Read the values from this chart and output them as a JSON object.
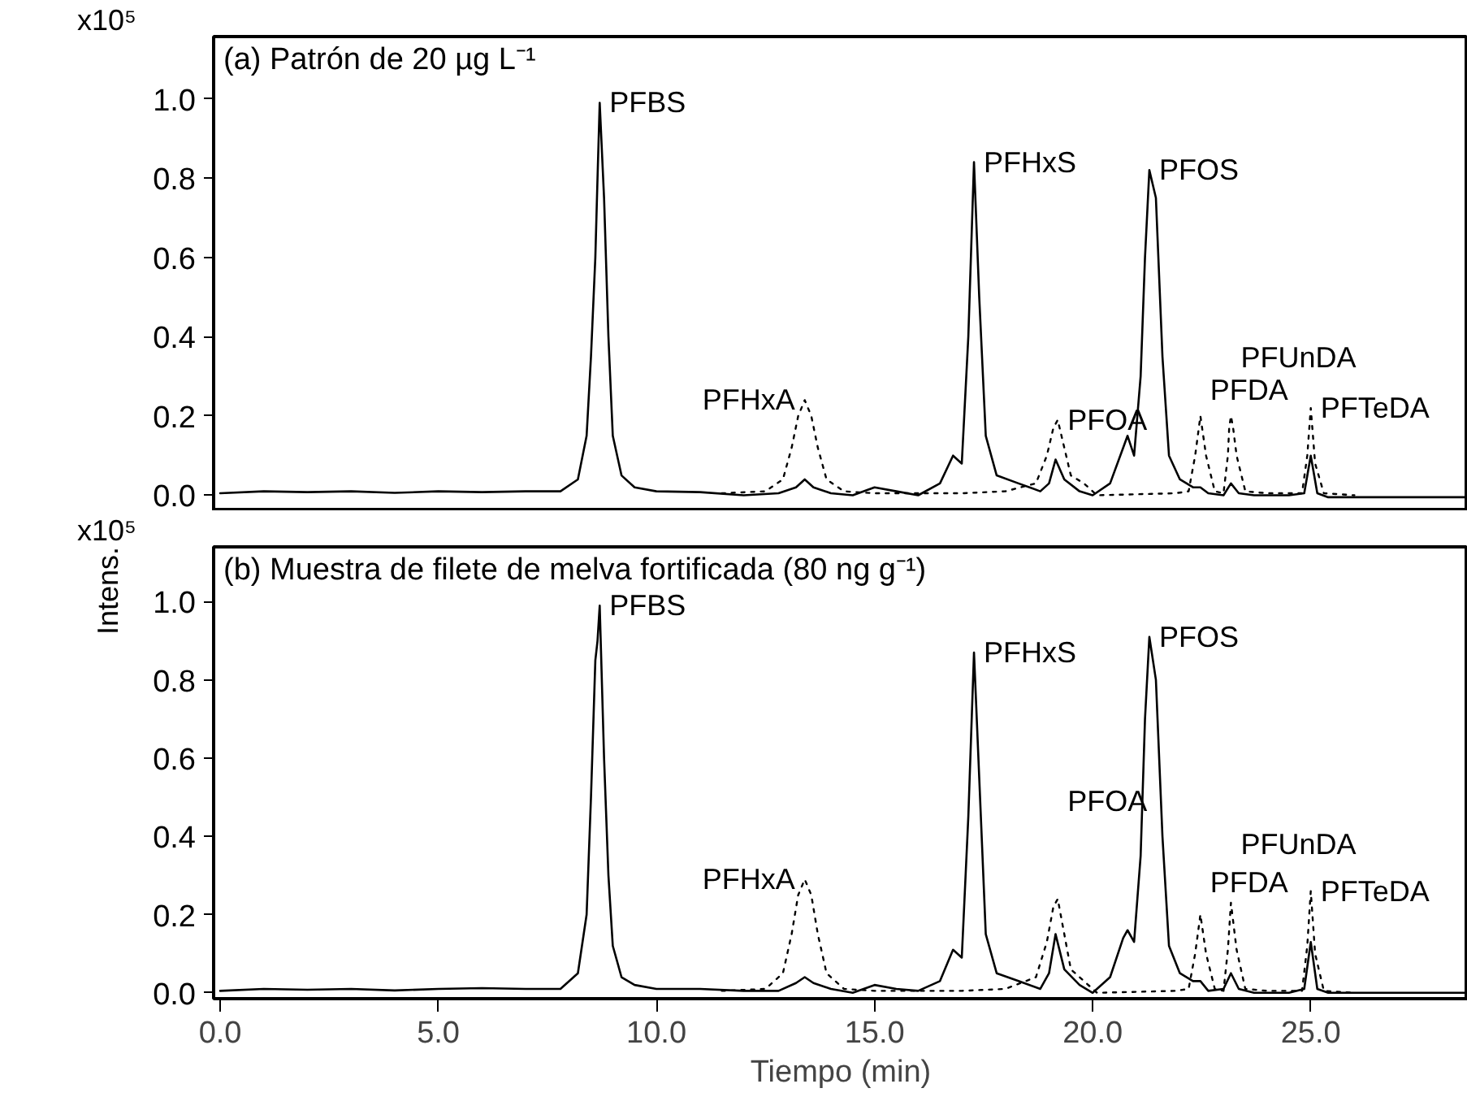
{
  "chart_data": [
    {
      "type": "line",
      "title": "(a) Patrón de 20 µg L⁻¹",
      "tick_labels": "y",
      "grid": false,
      "xlim": [
        -0.15,
        28.6
      ],
      "ylim": [
        -0.04,
        1.157
      ],
      "yticks": [
        {
          "value": 0,
          "label": "0.0"
        },
        {
          "value": 0.2,
          "label": "0.2"
        },
        {
          "value": 0.4,
          "label": "0.4"
        },
        {
          "value": 0.6,
          "label": "0.6"
        },
        {
          "value": 0.8,
          "label": "0.8"
        },
        {
          "value": 1,
          "label": "1.0"
        }
      ],
      "x": [
        0,
        1,
        2,
        3,
        4,
        5,
        6,
        7,
        7.8,
        8.2,
        8.4,
        8.5,
        8.6,
        8.65,
        8.7,
        8.8,
        8.9,
        9.0,
        9.2,
        9.5,
        10,
        11,
        12,
        12.8,
        13.2,
        13.4,
        13.6,
        14,
        14.5,
        15,
        15.5,
        16,
        16.5,
        16.8,
        17.0,
        17.15,
        17.28,
        17.4,
        17.55,
        17.8,
        18.3,
        18.8,
        19.0,
        19.15,
        19.35,
        19.7,
        20.0,
        20.4,
        20.7,
        20.8,
        20.95,
        21.1,
        21.2,
        21.3,
        21.45,
        21.6,
        21.75,
        22.0,
        22.3,
        22.47,
        22.65,
        23.0,
        23.17,
        23.35,
        23.7,
        24.5,
        24.85,
        25.0,
        25.15,
        25.4,
        26,
        27,
        28.6
      ],
      "series": [
        {
          "color": "#000000",
          "line_style": "solid",
          "values": [
            0.005,
            0.01,
            0.008,
            0.01,
            0.006,
            0.01,
            0.008,
            0.01,
            0.01,
            0.04,
            0.15,
            0.35,
            0.6,
            0.8,
            0.99,
            0.75,
            0.4,
            0.15,
            0.05,
            0.02,
            0.01,
            0.008,
            0.0,
            0.005,
            0.02,
            0.04,
            0.02,
            0.005,
            0.0,
            0.02,
            0.01,
            0.0,
            0.03,
            0.1,
            0.08,
            0.4,
            0.84,
            0.5,
            0.15,
            0.05,
            0.03,
            0.01,
            0.03,
            0.09,
            0.04,
            0.01,
            0.0,
            0.03,
            0.12,
            0.15,
            0.1,
            0.3,
            0.6,
            0.82,
            0.75,
            0.35,
            0.1,
            0.04,
            0.02,
            0.02,
            0.005,
            0.0,
            0.03,
            0.005,
            0.0,
            0.0,
            0.005,
            0.1,
            0.005,
            -0.005,
            -0.005,
            -0.005,
            -0.005
          ]
        },
        {
          "color": "#000000",
          "line_style": "dotted",
          "x": [
            11.5,
            12.5,
            12.9,
            13.1,
            13.25,
            13.4,
            13.55,
            13.7,
            13.9,
            14.3,
            15,
            16,
            17,
            18,
            18.7,
            18.95,
            19.1,
            19.2,
            19.35,
            19.5,
            19.8,
            20.1,
            21.9,
            22.2,
            22.35,
            22.47,
            22.6,
            22.8,
            23.0,
            23.1,
            23.13,
            23.17,
            23.22,
            23.3,
            23.5,
            24.0,
            24.8,
            24.92,
            25.0,
            25.1,
            25.3,
            26
          ],
          "values": [
            0.005,
            0.01,
            0.04,
            0.12,
            0.2,
            0.24,
            0.2,
            0.12,
            0.04,
            0.01,
            0.005,
            0.005,
            0.005,
            0.01,
            0.03,
            0.1,
            0.17,
            0.19,
            0.12,
            0.05,
            0.03,
            0.0,
            0.005,
            0.01,
            0.1,
            0.2,
            0.1,
            0.01,
            0.005,
            0.1,
            0.17,
            0.2,
            0.17,
            0.1,
            0.01,
            0.005,
            0.005,
            0.1,
            0.22,
            0.08,
            0.005,
            0.0
          ]
        }
      ],
      "annotations": [
        "x10⁵",
        {
          "text": "PFBS",
          "x": 8.7,
          "y": 0.99
        },
        {
          "text": "PFHxS",
          "x": 17.28,
          "y": 0.84
        },
        {
          "text": "PFOS",
          "x": 21.3,
          "y": 0.82
        },
        {
          "text": "PFHxA",
          "x": 13.4,
          "y": 0.24
        },
        {
          "text": "PFOA",
          "x": 19.2,
          "y": 0.19
        },
        {
          "text": "PFDA",
          "x": 22.47,
          "y": 0.2
        },
        {
          "text": "PFUnDA",
          "x": 23.17,
          "y": 0.2
        },
        {
          "text": "PFTeDA",
          "x": 25.0,
          "y": 0.22
        }
      ]
    },
    {
      "type": "line",
      "title": "(b) Muestra de filete de melva fortificada (80 ng g⁻¹)",
      "xlabel": "Tiempo (min)",
      "ylabel": "Intens.",
      "grid": false,
      "xlim": [
        -0.15,
        28.6
      ],
      "ylim": [
        -0.015,
        1.14
      ],
      "xticks": [
        {
          "value": 0,
          "label": "0.0"
        },
        {
          "value": 5,
          "label": "5.0"
        },
        {
          "value": 10,
          "label": "10.0"
        },
        {
          "value": 15,
          "label": "15.0"
        },
        {
          "value": 20,
          "label": "20.0"
        },
        {
          "value": 25,
          "label": "25.0"
        }
      ],
      "yticks": [
        {
          "value": 0,
          "label": "0.0"
        },
        {
          "value": 0.2,
          "label": "0.2"
        },
        {
          "value": 0.4,
          "label": "0.4"
        },
        {
          "value": 0.6,
          "label": "0.6"
        },
        {
          "value": 0.8,
          "label": "0.8"
        },
        {
          "value": 1,
          "label": "1.0"
        }
      ],
      "x": [
        0,
        1,
        2,
        3,
        4,
        5,
        6,
        7,
        7.8,
        8.2,
        8.4,
        8.5,
        8.6,
        8.65,
        8.7,
        8.8,
        8.9,
        9.0,
        9.2,
        9.5,
        10,
        11,
        12,
        12.8,
        13.2,
        13.4,
        13.6,
        14,
        14.5,
        15,
        15.5,
        16,
        16.5,
        16.8,
        17.0,
        17.15,
        17.28,
        17.4,
        17.55,
        17.8,
        18.3,
        18.8,
        19.0,
        19.15,
        19.35,
        19.7,
        20.0,
        20.4,
        20.7,
        20.8,
        20.95,
        21.1,
        21.2,
        21.3,
        21.45,
        21.6,
        21.75,
        22.0,
        22.3,
        22.47,
        22.65,
        23.0,
        23.17,
        23.35,
        23.7,
        24.5,
        24.85,
        25.0,
        25.15,
        25.4,
        26,
        27,
        28.6
      ],
      "series": [
        {
          "color": "#000000",
          "line_style": "solid",
          "values": [
            0.005,
            0.01,
            0.008,
            0.01,
            0.006,
            0.01,
            0.012,
            0.01,
            0.01,
            0.05,
            0.2,
            0.5,
            0.85,
            0.9,
            0.99,
            0.6,
            0.3,
            0.12,
            0.04,
            0.02,
            0.01,
            0.01,
            0.005,
            0.005,
            0.025,
            0.04,
            0.025,
            0.01,
            0.0,
            0.02,
            0.01,
            0.005,
            0.03,
            0.11,
            0.09,
            0.45,
            0.87,
            0.55,
            0.15,
            0.05,
            0.03,
            0.01,
            0.05,
            0.15,
            0.06,
            0.02,
            0.0,
            0.04,
            0.14,
            0.16,
            0.13,
            0.35,
            0.7,
            0.91,
            0.8,
            0.4,
            0.12,
            0.05,
            0.03,
            0.03,
            0.005,
            0.01,
            0.05,
            0.01,
            0.0,
            0.0,
            0.01,
            0.13,
            0.01,
            0.0,
            0.0,
            0.0,
            0.0
          ]
        },
        {
          "color": "#000000",
          "line_style": "dotted",
          "x": [
            11.5,
            12.5,
            12.9,
            13.1,
            13.25,
            13.4,
            13.55,
            13.7,
            13.9,
            14.3,
            15,
            16,
            17,
            18,
            18.7,
            18.95,
            19.1,
            19.2,
            19.35,
            19.5,
            19.8,
            20.1,
            21.9,
            22.2,
            22.35,
            22.47,
            22.6,
            22.8,
            23.0,
            23.1,
            23.17,
            23.3,
            23.5,
            24.0,
            24.8,
            24.92,
            25.0,
            25.1,
            25.3,
            26
          ],
          "values": [
            0.005,
            0.01,
            0.05,
            0.15,
            0.25,
            0.29,
            0.25,
            0.15,
            0.05,
            0.01,
            0.005,
            0.005,
            0.005,
            0.01,
            0.04,
            0.13,
            0.22,
            0.24,
            0.15,
            0.06,
            0.03,
            0.0,
            0.005,
            0.01,
            0.1,
            0.2,
            0.1,
            0.01,
            0.005,
            0.11,
            0.23,
            0.11,
            0.01,
            0.005,
            0.005,
            0.12,
            0.26,
            0.1,
            0.005,
            0.0
          ]
        }
      ],
      "annotations": [
        "x10⁵",
        {
          "text": "PFBS",
          "x": 8.7,
          "y": 0.99
        },
        {
          "text": "PFHxS",
          "x": 17.28,
          "y": 0.87
        },
        {
          "text": "PFOS",
          "x": 21.3,
          "y": 0.91
        },
        {
          "text": "PFHxA",
          "x": 13.4,
          "y": 0.29
        },
        {
          "text": "PFOA",
          "x": 19.2,
          "y": 0.24
        },
        {
          "text": "PFDA",
          "x": 22.47,
          "y": 0.2
        },
        {
          "text": "PFUnDA",
          "x": 23.17,
          "y": 0.23
        },
        {
          "text": "PFTeDA",
          "x": 25.0,
          "y": 0.26
        }
      ]
    }
  ]
}
